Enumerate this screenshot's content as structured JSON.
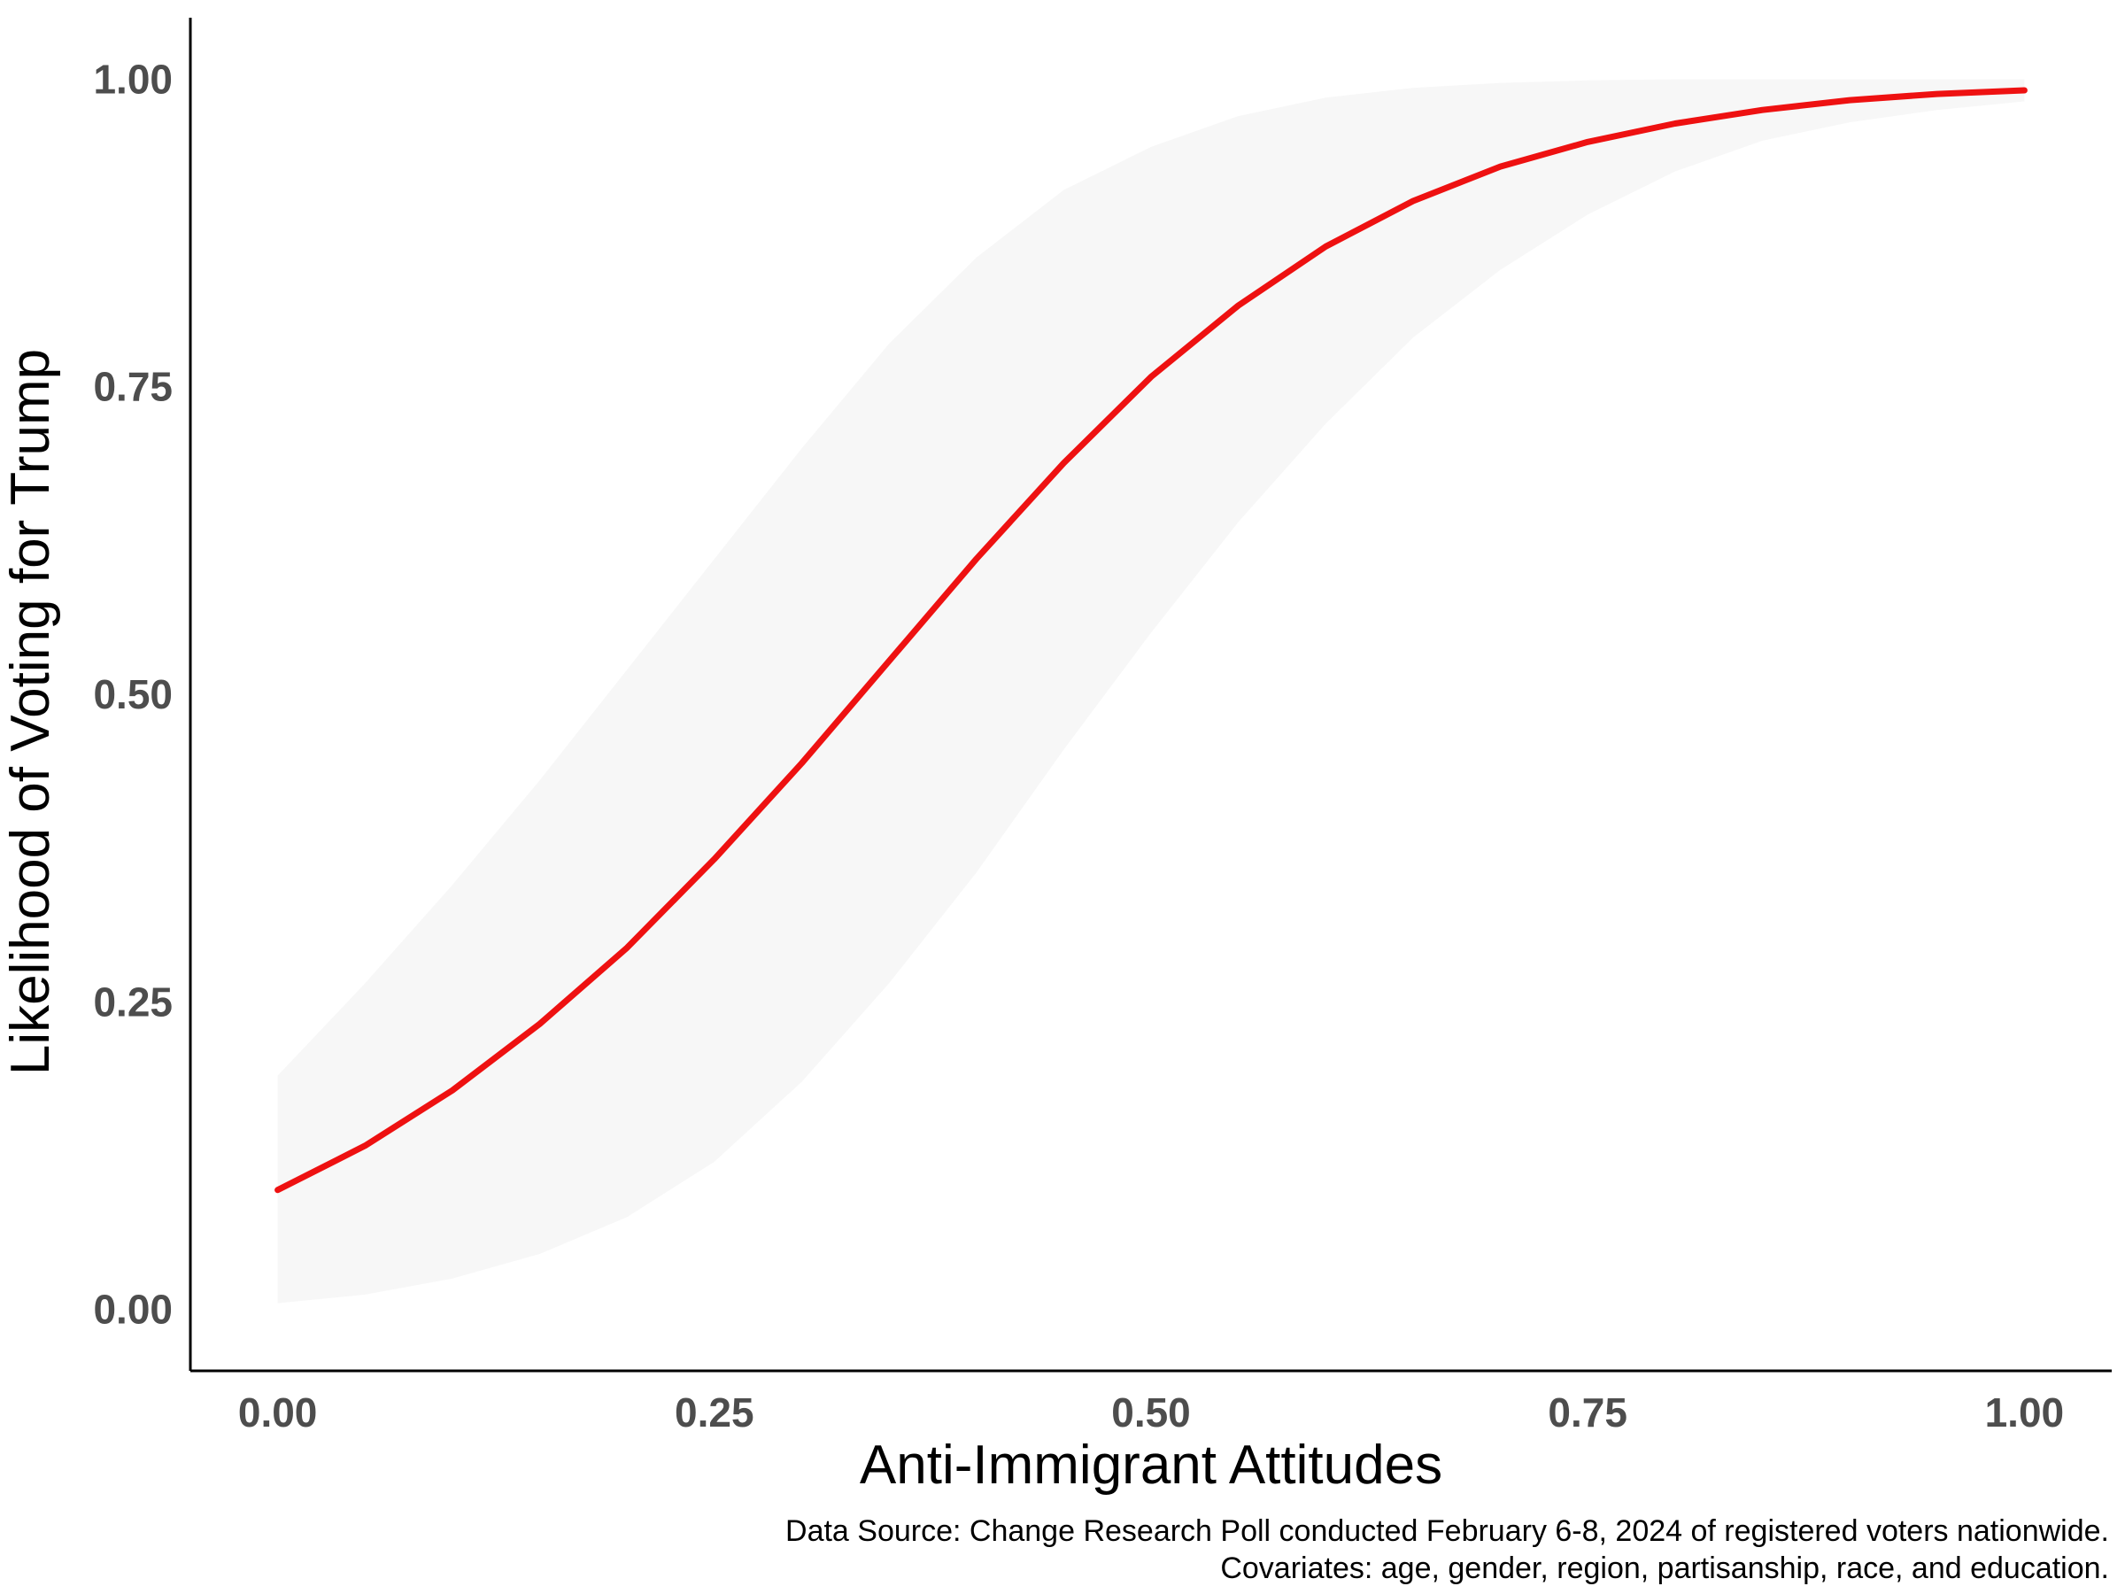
{
  "chart_data": {
    "type": "line",
    "xlabel": "Anti-Immigrant Attitudes",
    "ylabel": "Likelihood of Voting for Trump",
    "xlim": [
      -0.05,
      1.05
    ],
    "ylim": [
      -0.05,
      1.05
    ],
    "x_ticks": [
      {
        "value": 0.0,
        "label": "0.00"
      },
      {
        "value": 0.25,
        "label": "0.25"
      },
      {
        "value": 0.5,
        "label": "0.50"
      },
      {
        "value": 0.75,
        "label": "0.75"
      },
      {
        "value": 1.0,
        "label": "1.00"
      }
    ],
    "y_ticks": [
      {
        "value": 0.0,
        "label": "0.00"
      },
      {
        "value": 0.25,
        "label": "0.25"
      },
      {
        "value": 0.5,
        "label": "0.50"
      },
      {
        "value": 0.75,
        "label": "0.75"
      },
      {
        "value": 1.0,
        "label": "1.00"
      }
    ],
    "series": [
      {
        "x": [
          0.0,
          0.05,
          0.1,
          0.15,
          0.2,
          0.25,
          0.3,
          0.35,
          0.4,
          0.45,
          0.5,
          0.55,
          0.6,
          0.65,
          0.7,
          0.75,
          0.8,
          0.85,
          0.9,
          0.95,
          1.0
        ],
        "y": [
          0.097,
          0.133,
          0.178,
          0.232,
          0.294,
          0.366,
          0.444,
          0.527,
          0.61,
          0.688,
          0.758,
          0.816,
          0.864,
          0.901,
          0.929,
          0.949,
          0.964,
          0.975,
          0.983,
          0.988,
          0.991
        ],
        "lower": [
          0.005,
          0.012,
          0.025,
          0.045,
          0.075,
          0.12,
          0.185,
          0.265,
          0.355,
          0.455,
          0.55,
          0.64,
          0.72,
          0.79,
          0.845,
          0.89,
          0.925,
          0.95,
          0.965,
          0.975,
          0.982
        ],
        "upper": [
          0.19,
          0.265,
          0.345,
          0.43,
          0.52,
          0.61,
          0.7,
          0.785,
          0.855,
          0.91,
          0.945,
          0.97,
          0.985,
          0.993,
          0.997,
          0.999,
          1.0,
          1.0,
          1.0,
          1.0,
          1.0
        ]
      }
    ],
    "line_color": "#ee1111",
    "band_color": "#f7f7f7",
    "grid": false,
    "legend": "none"
  },
  "caption": {
    "line1": "Data Source: Change Research Poll conducted February 6-8, 2024 of registered voters nationwide.",
    "line2": "Covariates: age, gender, region, partisanship, race, and education."
  }
}
